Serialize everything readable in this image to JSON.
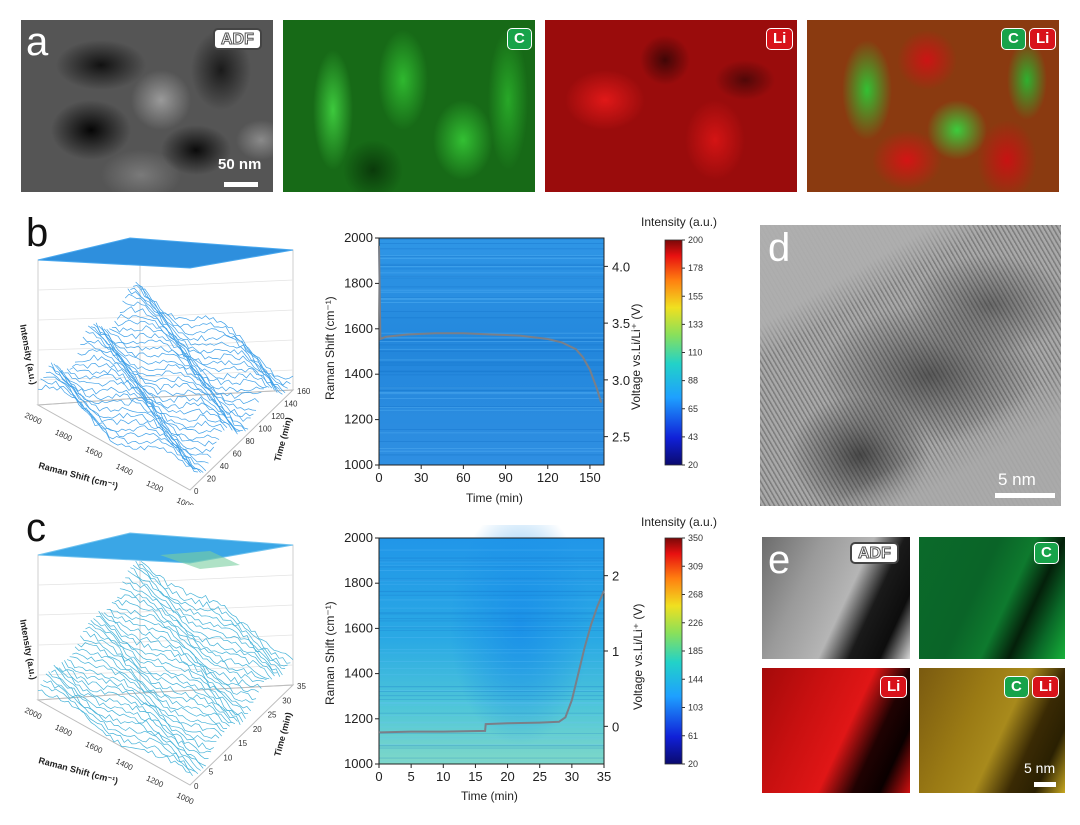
{
  "panels": {
    "a": {
      "letter": "a",
      "adf_label": "ADF",
      "c_label": "C",
      "li_label": "Li",
      "scale_label": "50 nm"
    },
    "b": {
      "letter": "b",
      "surface3d": {
        "z_label": "Intensity (a.u.)",
        "x_label": "Raman Shift (cm⁻¹)",
        "y_label": "Time (min)",
        "x_ticks": [
          "2000",
          "1800",
          "1600",
          "1400",
          "1200",
          "1000"
        ],
        "y_ticks": [
          "0",
          "20",
          "40",
          "60",
          "80",
          "100",
          "120",
          "140",
          "160"
        ]
      },
      "heatmap": {
        "y_label": "Raman Shift (cm⁻¹)",
        "x_label": "Time (min)",
        "right_label": "Voltage vs.Li/Li⁺ (V)",
        "y_ticks": [
          "1000",
          "1200",
          "1400",
          "1600",
          "1800",
          "2000"
        ],
        "x_ticks": [
          "0",
          "30",
          "60",
          "90",
          "120",
          "150"
        ],
        "right_ticks": [
          "2.5",
          "3.0",
          "3.5",
          "4.0"
        ]
      },
      "colorbar": {
        "title": "Intensity (a.u.)",
        "ticks": [
          "200",
          "178",
          "155",
          "133",
          "110",
          "88",
          "65",
          "43",
          "20"
        ]
      }
    },
    "c": {
      "letter": "c",
      "surface3d": {
        "z_label": "Intensity (a.u.)",
        "x_label": "Raman Shift (cm⁻¹)",
        "y_label": "Time (min)",
        "x_ticks": [
          "2000",
          "1800",
          "1600",
          "1400",
          "1200",
          "1000"
        ],
        "y_ticks": [
          "0",
          "5",
          "10",
          "15",
          "20",
          "25",
          "30",
          "35"
        ]
      },
      "heatmap": {
        "y_label": "Raman Shift (cm⁻¹)",
        "x_label": "Time (min)",
        "right_label": "Voltage vs.Li/Li⁺ (V)",
        "y_ticks": [
          "1000",
          "1200",
          "1400",
          "1600",
          "1800",
          "2000"
        ],
        "x_ticks": [
          "0",
          "5",
          "10",
          "15",
          "20",
          "25",
          "30",
          "35"
        ],
        "right_ticks": [
          "0",
          "1",
          "2"
        ]
      },
      "colorbar": {
        "title": "Intensity (a.u.)",
        "ticks": [
          "350",
          "309",
          "268",
          "226",
          "185",
          "144",
          "103",
          "61",
          "20"
        ]
      }
    },
    "d": {
      "letter": "d",
      "scale_label": "5 nm"
    },
    "e": {
      "letter": "e",
      "adf_label": "ADF",
      "c_label": "C",
      "li_label": "Li",
      "scale_label": "5 nm"
    }
  },
  "chart_data": [
    {
      "type": "heatmap",
      "panel": "b",
      "xlabel": "Time (min)",
      "ylabel": "Raman Shift (cm⁻¹)",
      "xlim": [
        0,
        160
      ],
      "ylim": [
        1000,
        2000
      ],
      "y2label": "Voltage vs.Li/Li⁺ (V)",
      "y2lim": [
        2.25,
        4.25
      ],
      "colorbar_range": [
        20,
        200
      ],
      "voltage_curve": {
        "x": [
          0,
          1,
          5,
          20,
          40,
          60,
          80,
          100,
          120,
          130,
          140,
          145,
          150,
          155,
          158
        ],
        "y": [
          4.18,
          3.36,
          3.38,
          3.4,
          3.41,
          3.41,
          3.4,
          3.39,
          3.36,
          3.33,
          3.27,
          3.2,
          3.09,
          2.92,
          2.8
        ]
      }
    },
    {
      "type": "heatmap",
      "panel": "c",
      "xlabel": "Time (min)",
      "ylabel": "Raman Shift (cm⁻¹)",
      "xlim": [
        0,
        35
      ],
      "ylim": [
        1000,
        2000
      ],
      "y2label": "Voltage vs.Li/Li⁺ (V)",
      "y2lim": [
        -0.5,
        2.5
      ],
      "colorbar_range": [
        20,
        350
      ],
      "voltage_curve": {
        "x": [
          0,
          5,
          10,
          16.5,
          16.6,
          20,
          25,
          28,
          29,
          30,
          31,
          32,
          33,
          34,
          35
        ],
        "y": [
          -0.08,
          -0.07,
          -0.07,
          -0.06,
          0.03,
          0.04,
          0.05,
          0.06,
          0.12,
          0.35,
          0.7,
          1.05,
          1.35,
          1.6,
          1.8
        ]
      }
    }
  ]
}
